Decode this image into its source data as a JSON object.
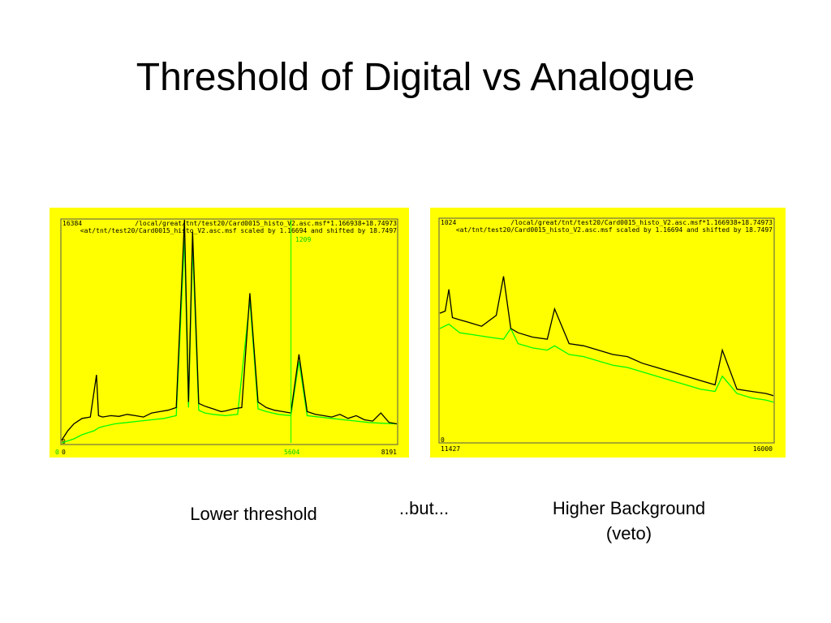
{
  "title": "Threshold of Digital vs Analogue",
  "captions": {
    "left": "Lower threshold",
    "middle": "..but...",
    "right_line1": "Higher Background",
    "right_line2": "(veto)"
  },
  "colors": {
    "panel_bg": "#ffff00",
    "series_black": "#000000",
    "series_green": "#00ff00",
    "marker_green": "#00ff00"
  },
  "chart_data": [
    {
      "type": "line",
      "header_line1": "/local/great/tnt/test20/Card0015_histo_V2.asc.msf*1.166938+18.74973",
      "header_line2": "<at/tnt/test20/Card0015_histo_V2.asc.msf scaled by 1.16694 and shifted by 18.7497",
      "y_max_label": "16384",
      "y_min_label": "0",
      "x_min_label": "0",
      "x_max_label": "8191",
      "x_origin_marker_label": "0",
      "cursor_label": "1209",
      "cursor_x_label": "5604",
      "xlim": [
        0,
        8191
      ],
      "ylim": [
        0,
        16384
      ],
      "cursor_x": 5604,
      "series": [
        {
          "color": "#000000",
          "x": [
            0,
            150,
            300,
            400,
            500,
            700,
            850,
            900,
            1000,
            1200,
            1400,
            1600,
            1800,
            2000,
            2200,
            2400,
            2600,
            2800,
            3000,
            3100,
            3200,
            3350,
            3500,
            3600,
            3700,
            3800,
            3900,
            4000,
            4200,
            4400,
            4600,
            4800,
            4900,
            5000,
            5200,
            5400,
            5600,
            5800,
            6000,
            6200,
            6400,
            6600,
            6800,
            7000,
            7200,
            7400,
            7600,
            7800,
            8000,
            8191
          ],
          "y": [
            200,
            900,
            1400,
            1600,
            1800,
            1900,
            5000,
            2000,
            1900,
            2000,
            1950,
            2100,
            2000,
            1900,
            2200,
            2300,
            2400,
            2600,
            16384,
            3000,
            15500,
            2900,
            2700,
            2600,
            2500,
            2400,
            2300,
            2350,
            2500,
            2600,
            11000,
            3000,
            2800,
            2600,
            2400,
            2300,
            2200,
            6500,
            2300,
            2100,
            2000,
            1900,
            2100,
            1800,
            2000,
            1700,
            1600,
            2200,
            1500,
            1400
          ]
        },
        {
          "color": "#00ff00",
          "x": [
            0,
            300,
            500,
            800,
            900,
            1000,
            1300,
            1600,
            1900,
            2200,
            2500,
            2800,
            3000,
            3100,
            3200,
            3350,
            3500,
            3700,
            4000,
            4300,
            4600,
            4800,
            5000,
            5300,
            5600,
            5800,
            6000,
            6300,
            6600,
            6900,
            7200,
            7500,
            7800,
            8191
          ],
          "y": [
            0,
            300,
            600,
            900,
            1100,
            1200,
            1400,
            1500,
            1600,
            1700,
            1800,
            2000,
            15000,
            2600,
            14500,
            2400,
            2200,
            2100,
            2000,
            2100,
            10500,
            2500,
            2300,
            2100,
            2000,
            6000,
            2000,
            1900,
            1800,
            1700,
            1600,
            1500,
            1450,
            1400
          ]
        }
      ]
    },
    {
      "type": "line",
      "header_line1": "/local/great/tnt/test20/Card0015_histo_V2.asc.msf*1.166938+18.74973",
      "header_line2": "<at/tnt/test20/Card0015_histo_V2.asc.msf scaled by 1.16694 and shifted by 18.7497",
      "y_max_label": "1024",
      "y_min_label": "0",
      "x_min_label": "11427",
      "x_max_label": "16000",
      "xlim": [
        11427,
        16000
      ],
      "ylim": [
        0,
        1024
      ],
      "series": [
        {
          "color": "#000000",
          "x": [
            11427,
            11500,
            11550,
            11600,
            11700,
            11800,
            11900,
            12000,
            12200,
            12300,
            12400,
            12500,
            12700,
            12900,
            13000,
            13200,
            13400,
            13600,
            13800,
            14000,
            14200,
            14400,
            14600,
            14800,
            15000,
            15200,
            15300,
            15500,
            15700,
            15900,
            16000
          ],
          "y": [
            590,
            600,
            700,
            570,
            560,
            550,
            540,
            530,
            580,
            760,
            520,
            500,
            480,
            470,
            610,
            450,
            440,
            420,
            400,
            390,
            360,
            340,
            320,
            300,
            280,
            260,
            420,
            240,
            230,
            220,
            210
          ]
        },
        {
          "color": "#00ff00",
          "x": [
            11427,
            11550,
            11700,
            11900,
            12100,
            12300,
            12400,
            12500,
            12700,
            12900,
            13000,
            13200,
            13400,
            13600,
            13800,
            14000,
            14200,
            14400,
            14600,
            14800,
            15000,
            15200,
            15300,
            15500,
            15700,
            15900,
            16000
          ],
          "y": [
            520,
            540,
            500,
            490,
            480,
            470,
            520,
            450,
            430,
            420,
            440,
            400,
            390,
            370,
            350,
            340,
            320,
            300,
            280,
            260,
            240,
            230,
            300,
            220,
            200,
            190,
            180
          ]
        }
      ]
    }
  ]
}
